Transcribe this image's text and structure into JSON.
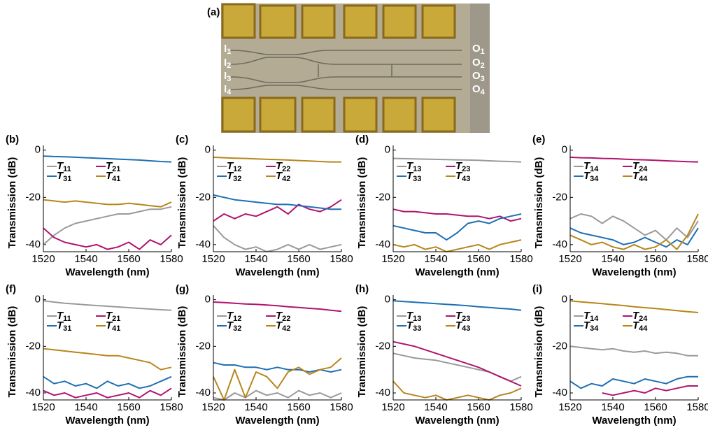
{
  "photo": {
    "label": "(a)",
    "inputs": [
      "I1",
      "I2",
      "I3",
      "I4"
    ],
    "outputs": [
      "O1",
      "O2",
      "O3",
      "O4"
    ]
  },
  "chart_data": [
    {
      "type": "line",
      "label": "(b)",
      "x_label": "Wavelength (nm)",
      "y_label": "Transmission (dB)",
      "x": [
        1520,
        1525,
        1530,
        1535,
        1540,
        1545,
        1550,
        1555,
        1560,
        1565,
        1570,
        1575,
        1580
      ],
      "xlim": [
        1520,
        1580
      ],
      "xticks": [
        1520,
        1540,
        1560,
        1580
      ],
      "ylim": [
        -43,
        2
      ],
      "yticks": [
        0,
        -20,
        -40
      ],
      "series": [
        {
          "name": "T11",
          "color": "#9a9a9a",
          "values": [
            -40,
            -36,
            -33,
            -31,
            -30,
            -29,
            -28,
            -27,
            -27,
            -26,
            -25,
            -25,
            -24
          ]
        },
        {
          "name": "T21",
          "color": "#b0146e",
          "values": [
            -33,
            -37,
            -39,
            -40,
            -41,
            -40,
            -42,
            -41,
            -39,
            -42,
            -38,
            -40,
            -36
          ]
        },
        {
          "name": "T31",
          "color": "#1f6fb4",
          "values": [
            -2.5,
            -2.7,
            -2.8,
            -3,
            -3.2,
            -3.4,
            -3.6,
            -3.8,
            -4,
            -4.2,
            -4.5,
            -4.8,
            -5
          ]
        },
        {
          "name": "T41",
          "color": "#b8861b",
          "values": [
            -21,
            -21.5,
            -22,
            -21.5,
            -22,
            -22.5,
            -23,
            -23,
            -22.5,
            -23,
            -23.5,
            -24,
            -22
          ]
        }
      ]
    },
    {
      "type": "line",
      "label": "(c)",
      "x_label": "Wavelength (nm)",
      "y_label": "Transmission (dB)",
      "x": [
        1520,
        1525,
        1530,
        1535,
        1540,
        1545,
        1550,
        1555,
        1560,
        1565,
        1570,
        1575,
        1580
      ],
      "xlim": [
        1520,
        1580
      ],
      "xticks": [
        1520,
        1540,
        1560,
        1580
      ],
      "ylim": [
        -43,
        2
      ],
      "yticks": [
        0,
        -20,
        -40
      ],
      "series": [
        {
          "name": "T12",
          "color": "#9a9a9a",
          "values": [
            -32,
            -37,
            -40,
            -42,
            -41,
            -43,
            -42,
            -40,
            -42,
            -40,
            -42,
            -41,
            -40
          ]
        },
        {
          "name": "T22",
          "color": "#b0146e",
          "values": [
            -30,
            -27,
            -29,
            -27,
            -28,
            -26,
            -24,
            -27,
            -23,
            -25,
            -26,
            -24,
            -21
          ]
        },
        {
          "name": "T32",
          "color": "#1f6fb4",
          "values": [
            -19,
            -20,
            -21,
            -21.5,
            -22,
            -22.5,
            -23,
            -23,
            -23.5,
            -24,
            -24.5,
            -25,
            -25
          ]
        },
        {
          "name": "T42",
          "color": "#b8861b",
          "values": [
            -3,
            -3.2,
            -3.4,
            -3.5,
            -3.7,
            -3.9,
            -4,
            -4.2,
            -4.4,
            -4.6,
            -4.8,
            -5,
            -5
          ]
        }
      ]
    },
    {
      "type": "line",
      "label": "(d)",
      "x_label": "Wavelength (nm)",
      "y_label": "Transmission (dB)",
      "x": [
        1520,
        1525,
        1530,
        1535,
        1540,
        1545,
        1550,
        1555,
        1560,
        1565,
        1570,
        1575,
        1580
      ],
      "xlim": [
        1520,
        1580
      ],
      "xticks": [
        1520,
        1540,
        1560,
        1580
      ],
      "ylim": [
        -43,
        2
      ],
      "yticks": [
        0,
        -20,
        -40
      ],
      "series": [
        {
          "name": "T13",
          "color": "#9a9a9a",
          "values": [
            -3.5,
            -3.6,
            -3.7,
            -3.8,
            -3.9,
            -4,
            -4.1,
            -4.2,
            -4.3,
            -4.5,
            -4.7,
            -4.8,
            -5
          ]
        },
        {
          "name": "T23",
          "color": "#b0146e",
          "values": [
            -25,
            -26,
            -26,
            -26.5,
            -27,
            -27,
            -27.5,
            -28,
            -28,
            -29,
            -28,
            -30,
            -29
          ]
        },
        {
          "name": "T33",
          "color": "#1f6fb4",
          "values": [
            -32,
            -33,
            -34,
            -35,
            -35,
            -38,
            -35,
            -31,
            -30,
            -31,
            -29,
            -28,
            -27
          ]
        },
        {
          "name": "T43",
          "color": "#b8861b",
          "values": [
            -40,
            -41,
            -40,
            -42,
            -41,
            -43,
            -42,
            -41,
            -40,
            -42,
            -40,
            -39,
            -38
          ]
        }
      ]
    },
    {
      "type": "line",
      "label": "(e)",
      "x_label": "Wavelength (nm)",
      "y_label": "Transmission (dB)",
      "x": [
        1520,
        1525,
        1530,
        1535,
        1540,
        1545,
        1550,
        1555,
        1560,
        1565,
        1570,
        1575,
        1580
      ],
      "xlim": [
        1520,
        1580
      ],
      "xticks": [
        1520,
        1540,
        1560,
        1580
      ],
      "ylim": [
        -43,
        2
      ],
      "yticks": [
        0,
        -20,
        -40
      ],
      "series": [
        {
          "name": "T14",
          "color": "#9a9a9a",
          "values": [
            -29,
            -27,
            -28,
            -31,
            -28,
            -30,
            -33,
            -36,
            -34,
            -38,
            -33,
            -37,
            -30
          ]
        },
        {
          "name": "T24",
          "color": "#b0146e",
          "values": [
            -3,
            -3.2,
            -3.3,
            -3.5,
            -3.6,
            -3.8,
            -4,
            -4.1,
            -4.3,
            -4.5,
            -4.7,
            -4.9,
            -5
          ]
        },
        {
          "name": "T34",
          "color": "#1f6fb4",
          "values": [
            -33,
            -35,
            -36,
            -37,
            -38,
            -40,
            -39,
            -37,
            -39,
            -41,
            -38,
            -40,
            -33
          ]
        },
        {
          "name": "T44",
          "color": "#b8861b",
          "values": [
            -36,
            -38,
            -40,
            -39,
            -41,
            -42,
            -40,
            -42,
            -41,
            -38,
            -42,
            -36,
            -27
          ]
        }
      ]
    },
    {
      "type": "line",
      "label": "(f)",
      "x_label": "Wavelength (nm)",
      "y_label": "Transmission (dB)",
      "x": [
        1520,
        1525,
        1530,
        1535,
        1540,
        1545,
        1550,
        1555,
        1560,
        1565,
        1570,
        1575,
        1580
      ],
      "xlim": [
        1520,
        1580
      ],
      "xticks": [
        1520,
        1540,
        1560,
        1580
      ],
      "ylim": [
        -43,
        2
      ],
      "yticks": [
        0,
        -20,
        -40
      ],
      "series": [
        {
          "name": "T11",
          "color": "#9a9a9a",
          "values": [
            -0.5,
            -1,
            -1.5,
            -1.8,
            -2.2,
            -2.5,
            -2.8,
            -3.1,
            -3.4,
            -3.7,
            -4,
            -4.3,
            -4.5
          ]
        },
        {
          "name": "T21",
          "color": "#b0146e",
          "values": [
            -39,
            -41,
            -40,
            -42,
            -41,
            -40,
            -42,
            -41,
            -40,
            -42,
            -39,
            -41,
            -38
          ]
        },
        {
          "name": "T31",
          "color": "#1f6fb4",
          "values": [
            -33,
            -36,
            -35,
            -37,
            -36,
            -38,
            -35,
            -37,
            -36,
            -38,
            -37,
            -35,
            -33
          ]
        },
        {
          "name": "T41",
          "color": "#b8861b",
          "values": [
            -21,
            -21.5,
            -22,
            -22.5,
            -23,
            -23.5,
            -24,
            -24,
            -25,
            -26,
            -27,
            -30,
            -29
          ]
        }
      ]
    },
    {
      "type": "line",
      "label": "(g)",
      "x_label": "Wavelength (nm)",
      "y_label": "Transmission (dB)",
      "x": [
        1520,
        1525,
        1530,
        1535,
        1540,
        1545,
        1550,
        1555,
        1560,
        1565,
        1570,
        1575,
        1580
      ],
      "xlim": [
        1520,
        1580
      ],
      "xticks": [
        1520,
        1540,
        1560,
        1580
      ],
      "ylim": [
        -43,
        2
      ],
      "yticks": [
        0,
        -20,
        -40
      ],
      "series": [
        {
          "name": "T12",
          "color": "#9a9a9a",
          "values": [
            -42,
            -43,
            -40,
            -42,
            -39,
            -41,
            -40,
            -42,
            -39,
            -41,
            -40,
            -42,
            -40
          ]
        },
        {
          "name": "T22",
          "color": "#b0146e",
          "values": [
            -1,
            -1.2,
            -1.5,
            -1.8,
            -2,
            -2.3,
            -2.6,
            -3,
            -3.3,
            -3.7,
            -4,
            -4.5,
            -5
          ]
        },
        {
          "name": "T32",
          "color": "#1f6fb4",
          "values": [
            -27,
            -28,
            -28,
            -29,
            -29,
            -30,
            -29,
            -30,
            -30,
            -31,
            -30,
            -31,
            -30
          ]
        },
        {
          "name": "T42",
          "color": "#b8861b",
          "values": [
            -33,
            -43,
            -30,
            -42,
            -31,
            -33,
            -38,
            -31,
            -29,
            -32,
            -30,
            -29,
            -25
          ]
        }
      ]
    },
    {
      "type": "line",
      "label": "(h)",
      "x_label": "Wavelength (nm)",
      "y_label": "Transmission (dB)",
      "x": [
        1520,
        1525,
        1530,
        1535,
        1540,
        1545,
        1550,
        1555,
        1560,
        1565,
        1570,
        1575,
        1580
      ],
      "xlim": [
        1520,
        1580
      ],
      "xticks": [
        1520,
        1540,
        1560,
        1580
      ],
      "ylim": [
        -43,
        2
      ],
      "yticks": [
        0,
        -20,
        -40
      ],
      "series": [
        {
          "name": "T13",
          "color": "#9a9a9a",
          "values": [
            -23,
            -24,
            -25,
            -25.5,
            -26,
            -27,
            -28,
            -29,
            -30,
            -31,
            -33,
            -35,
            -33
          ]
        },
        {
          "name": "T23",
          "color": "#b0146e",
          "values": [
            -18,
            -19,
            -20,
            -21.5,
            -23,
            -24.5,
            -26,
            -27.5,
            -29,
            -31,
            -33,
            -35,
            -37
          ]
        },
        {
          "name": "T33",
          "color": "#1f6fb4",
          "values": [
            -0.5,
            -0.8,
            -1.1,
            -1.4,
            -1.7,
            -2,
            -2.3,
            -2.6,
            -3,
            -3.3,
            -3.7,
            -4,
            -4.5
          ]
        },
        {
          "name": "T43",
          "color": "#b8861b",
          "values": [
            -35,
            -40,
            -41,
            -42,
            -41,
            -43,
            -42,
            -41,
            -42,
            -43,
            -41,
            -40,
            -38
          ]
        }
      ]
    },
    {
      "type": "line",
      "label": "(i)",
      "x_label": "Wavelength (nm)",
      "y_label": "Transmission (dB)",
      "x": [
        1520,
        1525,
        1530,
        1535,
        1540,
        1545,
        1550,
        1555,
        1560,
        1565,
        1570,
        1575,
        1580
      ],
      "xlim": [
        1520,
        1580
      ],
      "xticks": [
        1520,
        1540,
        1560,
        1580
      ],
      "ylim": [
        -43,
        2
      ],
      "yticks": [
        0,
        -20,
        -40
      ],
      "series": [
        {
          "name": "T14",
          "color": "#9a9a9a",
          "values": [
            -20,
            -20.5,
            -21,
            -21.5,
            -21,
            -22,
            -22.5,
            -22,
            -23,
            -22.5,
            -23,
            -24,
            -24
          ]
        },
        {
          "name": "T24",
          "color": "#b0146e",
          "values": [
            null,
            null,
            null,
            -40,
            -41,
            -40,
            -39,
            -40,
            -38,
            -39,
            -38,
            -37,
            -37
          ]
        },
        {
          "name": "T34",
          "color": "#1f6fb4",
          "values": [
            -35,
            -38,
            -36,
            -37,
            -34,
            -35,
            -36,
            -34,
            -35,
            -36,
            -34,
            -33,
            -33
          ]
        },
        {
          "name": "T44",
          "color": "#b8861b",
          "values": [
            -0.5,
            -0.9,
            -1.3,
            -1.7,
            -2.1,
            -2.5,
            -3,
            -3.4,
            -3.8,
            -4.2,
            -4.7,
            -5.1,
            -5.5
          ]
        }
      ]
    }
  ]
}
